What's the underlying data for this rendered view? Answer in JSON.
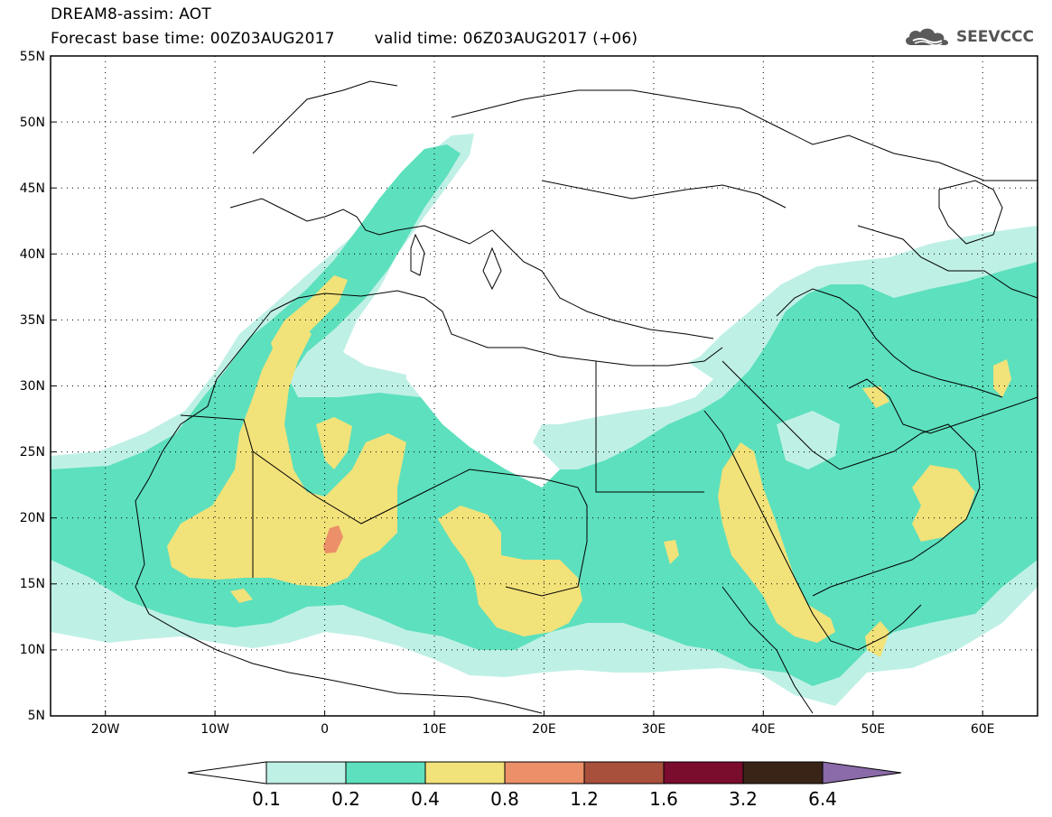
{
  "header": {
    "title": "DREAM8-assim: AOT",
    "base_time": "Forecast base time: 00Z03AUG2017",
    "valid_time": "valid time: 06Z03AUG2017 (+06)"
  },
  "logo": {
    "icon": "cloud-icon",
    "text": "SEEVCCC"
  },
  "map": {
    "lat_labels": [
      "55N",
      "50N",
      "45N",
      "40N",
      "35N",
      "30N",
      "25N",
      "20N",
      "15N",
      "10N",
      "5N"
    ],
    "lon_labels": [
      "20W",
      "10W",
      "0",
      "10E",
      "20E",
      "30E",
      "40E",
      "50E",
      "60E"
    ],
    "lon_range": [
      -25,
      65
    ],
    "lat_range": [
      5,
      55
    ],
    "grid": "dotted"
  },
  "colorbar": {
    "levels": [
      "0.1",
      "0.2",
      "0.4",
      "0.8",
      "1.2",
      "1.6",
      "3.2",
      "6.4"
    ],
    "colors": [
      "#ffffff",
      "#bff0e6",
      "#5de0bd",
      "#f2e27a",
      "#eb9068",
      "#a8503c",
      "#7a0c2e",
      "#3a2418",
      "#8a6aa8"
    ]
  }
}
